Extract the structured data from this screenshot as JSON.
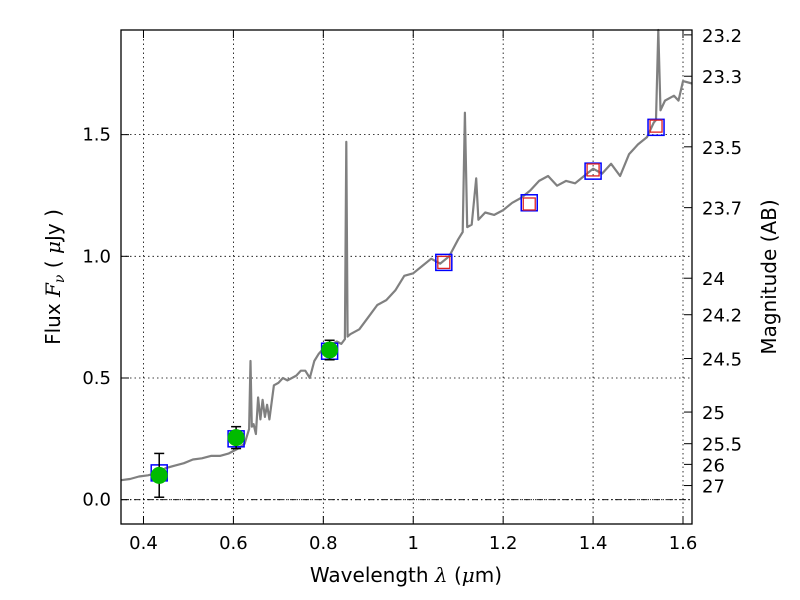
{
  "chart_data": {
    "type": "line",
    "xlabel": {
      "prefix": "Wavelength  ",
      "symbol": "λ",
      "suffix": " (",
      "mu": "μ",
      "unit": "m)"
    },
    "ylabel": {
      "prefix": "Flux  ",
      "symbol": "F",
      "sub": "ν",
      "suffix": "  ( ",
      "mu": "μ",
      "unit": "Jy )"
    },
    "ylabel_right": "Magnitude (AB)",
    "xlim": [
      0.35,
      1.62
    ],
    "ylim": [
      -0.1,
      1.93
    ],
    "grid": true,
    "colors": {
      "spectrum": "#808080",
      "phot_marker": "#00bb00",
      "model_box": "#0000ff",
      "obs_box": "#dd2222",
      "errorbar": "#000000",
      "zero_line": "#000000"
    },
    "x_ticks": [
      {
        "value": 0.4,
        "label": "0.4"
      },
      {
        "value": 0.6,
        "label": "0.6"
      },
      {
        "value": 0.8,
        "label": "0.8"
      },
      {
        "value": 1.0,
        "label": "1"
      },
      {
        "value": 1.2,
        "label": "1.2"
      },
      {
        "value": 1.4,
        "label": "1.4"
      },
      {
        "value": 1.6,
        "label": "1.6"
      }
    ],
    "y_ticks": [
      {
        "value": 0.0,
        "label": "0.0"
      },
      {
        "value": 0.5,
        "label": "0.5"
      },
      {
        "value": 1.0,
        "label": "1.0"
      },
      {
        "value": 1.5,
        "label": "1.5"
      }
    ],
    "mag_ticks": [
      {
        "label": "23.2",
        "flux": 1.91
      },
      {
        "label": "23.3",
        "flux": 1.74
      },
      {
        "label": "23.5",
        "flux": 1.45
      },
      {
        "label": "23.7",
        "flux": 1.2
      },
      {
        "label": "24",
        "flux": 0.91
      },
      {
        "label": "24.2",
        "flux": 0.76
      },
      {
        "label": "24.5",
        "flux": 0.58
      },
      {
        "label": "25",
        "flux": 0.36
      },
      {
        "label": "25.5",
        "flux": 0.23
      },
      {
        "label": "26",
        "flux": 0.145
      },
      {
        "label": "27",
        "flux": 0.058
      }
    ],
    "series": [
      {
        "name": "spectrum",
        "points": [
          [
            0.35,
            0.08
          ],
          [
            0.37,
            0.085
          ],
          [
            0.39,
            0.095
          ],
          [
            0.41,
            0.1
          ],
          [
            0.43,
            0.11
          ],
          [
            0.45,
            0.13
          ],
          [
            0.47,
            0.14
          ],
          [
            0.49,
            0.15
          ],
          [
            0.51,
            0.165
          ],
          [
            0.53,
            0.17
          ],
          [
            0.55,
            0.18
          ],
          [
            0.57,
            0.18
          ],
          [
            0.59,
            0.19
          ],
          [
            0.61,
            0.21
          ],
          [
            0.625,
            0.23
          ],
          [
            0.635,
            0.29
          ],
          [
            0.638,
            0.57
          ],
          [
            0.641,
            0.3
          ],
          [
            0.645,
            0.31
          ],
          [
            0.65,
            0.27
          ],
          [
            0.655,
            0.42
          ],
          [
            0.66,
            0.33
          ],
          [
            0.665,
            0.41
          ],
          [
            0.67,
            0.34
          ],
          [
            0.675,
            0.39
          ],
          [
            0.68,
            0.33
          ],
          [
            0.69,
            0.47
          ],
          [
            0.7,
            0.48
          ],
          [
            0.71,
            0.5
          ],
          [
            0.72,
            0.49
          ],
          [
            0.73,
            0.5
          ],
          [
            0.74,
            0.51
          ],
          [
            0.75,
            0.53
          ],
          [
            0.76,
            0.53
          ],
          [
            0.77,
            0.5
          ],
          [
            0.78,
            0.57
          ],
          [
            0.79,
            0.6
          ],
          [
            0.8,
            0.62
          ],
          [
            0.81,
            0.62
          ],
          [
            0.82,
            0.64
          ],
          [
            0.83,
            0.65
          ],
          [
            0.84,
            0.64
          ],
          [
            0.848,
            0.66
          ],
          [
            0.851,
            1.47
          ],
          [
            0.854,
            0.67
          ],
          [
            0.86,
            0.68
          ],
          [
            0.88,
            0.7
          ],
          [
            0.9,
            0.75
          ],
          [
            0.92,
            0.8
          ],
          [
            0.94,
            0.82
          ],
          [
            0.96,
            0.86
          ],
          [
            0.98,
            0.92
          ],
          [
            1.0,
            0.93
          ],
          [
            1.02,
            0.96
          ],
          [
            1.04,
            0.99
          ],
          [
            1.06,
            0.97
          ],
          [
            1.08,
            1.0
          ],
          [
            1.1,
            1.07
          ],
          [
            1.11,
            1.1
          ],
          [
            1.115,
            1.59
          ],
          [
            1.12,
            1.12
          ],
          [
            1.13,
            1.13
          ],
          [
            1.14,
            1.32
          ],
          [
            1.145,
            1.15
          ],
          [
            1.16,
            1.18
          ],
          [
            1.18,
            1.17
          ],
          [
            1.2,
            1.19
          ],
          [
            1.22,
            1.22
          ],
          [
            1.24,
            1.24
          ],
          [
            1.26,
            1.27
          ],
          [
            1.28,
            1.31
          ],
          [
            1.3,
            1.33
          ],
          [
            1.32,
            1.29
          ],
          [
            1.34,
            1.31
          ],
          [
            1.36,
            1.3
          ],
          [
            1.38,
            1.33
          ],
          [
            1.4,
            1.36
          ],
          [
            1.42,
            1.34
          ],
          [
            1.44,
            1.38
          ],
          [
            1.46,
            1.33
          ],
          [
            1.48,
            1.42
          ],
          [
            1.5,
            1.46
          ],
          [
            1.52,
            1.49
          ],
          [
            1.535,
            1.55
          ],
          [
            1.54,
            1.56
          ],
          [
            1.545,
            2.0
          ],
          [
            1.55,
            1.6
          ],
          [
            1.56,
            1.64
          ],
          [
            1.58,
            1.66
          ],
          [
            1.59,
            1.64
          ],
          [
            1.6,
            1.72
          ],
          [
            1.62,
            1.71
          ]
        ]
      },
      {
        "name": "photometry",
        "points": [
          {
            "x": 0.435,
            "y": 0.1,
            "err": 0.09
          },
          {
            "x": 0.606,
            "y": 0.255,
            "err": 0.045
          },
          {
            "x": 0.814,
            "y": 0.615,
            "err": 0.04
          }
        ]
      },
      {
        "name": "model_boxes",
        "points": [
          [
            0.435,
            0.11
          ],
          [
            0.606,
            0.25
          ],
          [
            0.814,
            0.61
          ],
          [
            1.068,
            0.975
          ],
          [
            1.258,
            1.22
          ],
          [
            1.4,
            1.35
          ],
          [
            1.54,
            1.53
          ]
        ]
      },
      {
        "name": "observed_boxes",
        "points": [
          [
            1.068,
            0.975
          ],
          [
            1.258,
            1.215
          ],
          [
            1.4,
            1.355
          ],
          [
            1.54,
            1.535
          ]
        ]
      }
    ]
  }
}
